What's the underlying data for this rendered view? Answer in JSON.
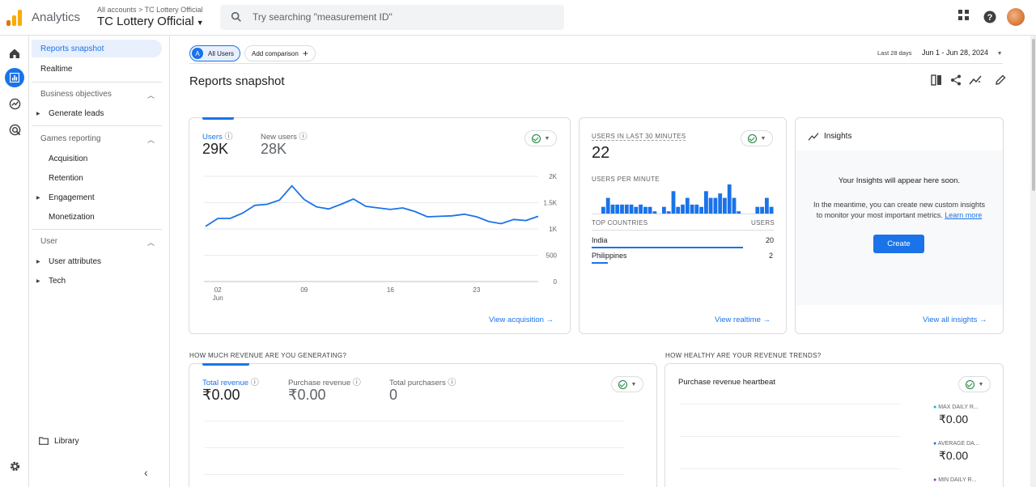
{
  "header": {
    "app_name": "Analytics",
    "breadcrumb": "All accounts > TC Lottery Official",
    "account_name": "TC Lottery Official",
    "search_placeholder": "Try searching \"measurement ID\""
  },
  "sidenav": {
    "top_items": [
      {
        "label": "Reports snapshot",
        "active": true
      },
      {
        "label": "Realtime",
        "active": false
      }
    ],
    "sections": [
      {
        "title": "Business objectives",
        "items": [
          {
            "label": "Generate leads",
            "expandable": true
          }
        ]
      },
      {
        "title": "Games reporting",
        "items": [
          {
            "label": "Acquisition",
            "expandable": false
          },
          {
            "label": "Retention",
            "expandable": false
          },
          {
            "label": "Engagement",
            "expandable": true
          },
          {
            "label": "Monetization",
            "expandable": false
          }
        ]
      },
      {
        "title": "User",
        "items": [
          {
            "label": "User attributes",
            "expandable": true
          },
          {
            "label": "Tech",
            "expandable": true
          }
        ]
      }
    ],
    "library": "Library"
  },
  "toolbar": {
    "segment_badge": "A",
    "segment_label": "All Users",
    "add_comparison": "Add comparison",
    "date_prefix": "Last 28 days",
    "date_range": "Jun 1 - Jun 28, 2024"
  },
  "page_title": "Reports snapshot",
  "users_card": {
    "metrics": [
      {
        "label": "Users",
        "value": "29K"
      },
      {
        "label": "New users",
        "value": "28K"
      }
    ],
    "link": "View acquisition"
  },
  "chart_data": {
    "type": "line",
    "title": "",
    "ylabel": "",
    "xlabel": "",
    "x_tick_labels": [
      "02",
      "09",
      "16",
      "23"
    ],
    "x_tick_sublabel": "Jun",
    "y_tick_labels": [
      "2K",
      "1.5K",
      "1K",
      "500",
      "0"
    ],
    "ylim": [
      0,
      2000
    ],
    "series": [
      {
        "values": [
          1050,
          1200,
          1200,
          1300,
          1450,
          1470,
          1550,
          1820,
          1560,
          1420,
          1380,
          1470,
          1570,
          1430,
          1400,
          1370,
          1400,
          1330,
          1230,
          1240,
          1250,
          1280,
          1230,
          1140,
          1100,
          1180,
          1160,
          1240
        ]
      }
    ]
  },
  "realtime_card": {
    "users_label": "USERS IN LAST 30 MINUTES",
    "users_value": "22",
    "per_minute_label": "USERS PER MINUTE",
    "per_minute_bars": [
      0,
      0,
      0.3,
      0.7,
      0.4,
      0.4,
      0.4,
      0.4,
      0.4,
      0.3,
      0.4,
      0.3,
      0.3,
      0.1,
      0,
      0.3,
      0.1,
      1.0,
      0.3,
      0.4,
      0.7,
      0.4,
      0.4,
      0.3,
      1.0,
      0.7,
      0.7,
      0.9,
      0.7,
      1.3,
      0.7,
      0.1,
      0,
      0,
      0,
      0.3,
      0.3,
      0.7,
      0.3
    ],
    "countries_header": "TOP COUNTRIES",
    "users_header": "USERS",
    "countries": [
      {
        "name": "India",
        "users": "20",
        "share": 0.91
      },
      {
        "name": "Philippines",
        "users": "2",
        "share": 0.09
      }
    ],
    "link": "View realtime"
  },
  "insights_card": {
    "title": "Insights",
    "headline": "Your Insights will appear here soon.",
    "body_1": "In the meantime, you can create new custom insights",
    "body_2": "to monitor your most important metrics.",
    "learn_more": "Learn more",
    "create": "Create",
    "link": "View all insights"
  },
  "revenue_section": {
    "heading": "HOW MUCH REVENUE ARE YOU GENERATING?",
    "metrics": [
      {
        "label": "Total revenue",
        "value": "₹0.00"
      },
      {
        "label": "Purchase revenue",
        "value": "₹0.00"
      },
      {
        "label": "Total purchasers",
        "value": "0"
      }
    ]
  },
  "trends_section": {
    "heading": "HOW HEALTHY ARE YOUR REVENUE TRENDS?",
    "card_title": "Purchase revenue heartbeat",
    "legend": [
      {
        "label": "MAX DAILY R...",
        "value": "₹0.00",
        "color": "#12b5cb"
      },
      {
        "label": "AVERAGE DA...",
        "value": "₹0.00",
        "color": "#1a73e8"
      },
      {
        "label": "MIN DAILY R...",
        "value": "",
        "color": "#9334e6"
      }
    ]
  },
  "colors": {
    "accent": "#1a73e8",
    "line": "#1a73e8",
    "active_nav_bg": "#e8f0fe"
  }
}
